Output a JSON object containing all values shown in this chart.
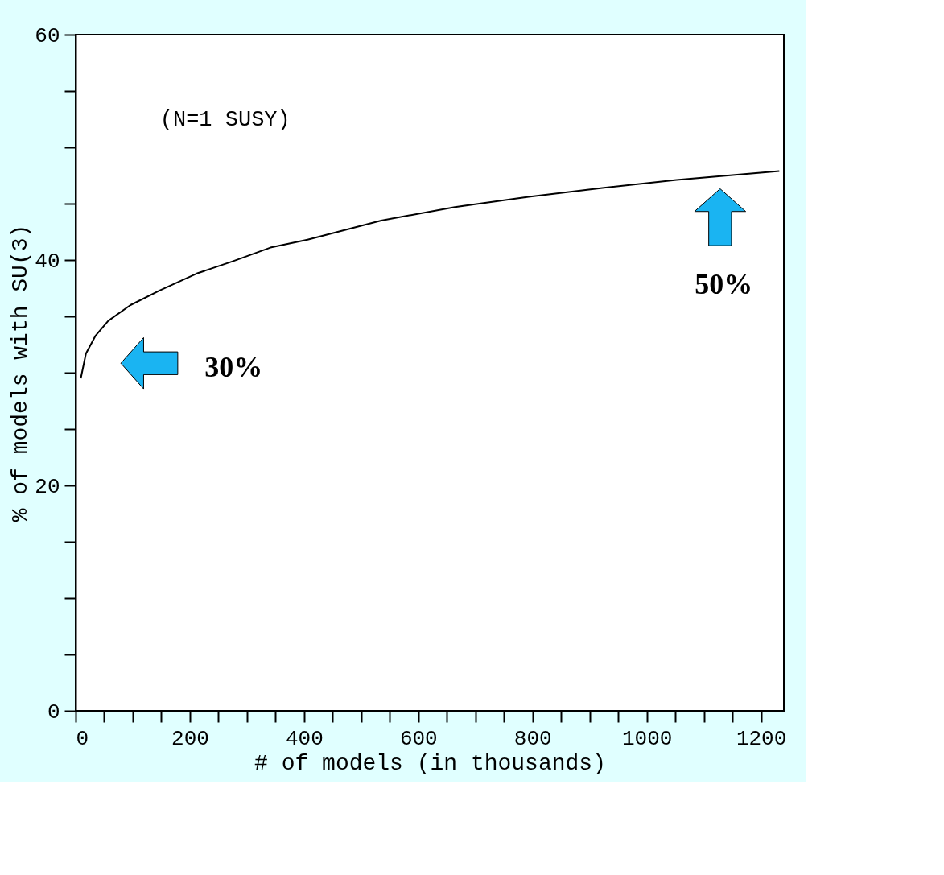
{
  "chart_data": {
    "type": "line",
    "xlabel": "# of models (in thousands)",
    "ylabel": "% of models with SU(3)",
    "x": [
      9,
      18,
      35,
      57,
      96,
      147,
      212,
      276,
      341,
      406,
      535,
      664,
      793,
      922,
      1052,
      1232
    ],
    "series": [
      {
        "color": "#000000",
        "values": [
          29.5,
          31.7,
          33.3,
          34.6,
          36.0,
          37.3,
          38.8,
          39.9,
          41.1,
          41.8,
          43.5,
          44.7,
          45.6,
          46.4,
          47.1,
          47.9
        ]
      }
    ],
    "xlim": [
      0,
      1240
    ],
    "ylim": [
      0,
      60
    ],
    "xticks": [
      0,
      {
        "value": 50,
        "label": null
      },
      {
        "value": 100,
        "label": null
      },
      {
        "value": 150,
        "label": null
      },
      200,
      {
        "value": 250,
        "label": null
      },
      {
        "value": 300,
        "label": null
      },
      {
        "value": 350,
        "label": null
      },
      400,
      {
        "value": 450,
        "label": null
      },
      {
        "value": 500,
        "label": null
      },
      {
        "value": 550,
        "label": null
      },
      600,
      {
        "value": 650,
        "label": null
      },
      {
        "value": 700,
        "label": null
      },
      {
        "value": 750,
        "label": null
      },
      800,
      {
        "value": 850,
        "label": null
      },
      {
        "value": 900,
        "label": null
      },
      {
        "value": 950,
        "label": null
      },
      1000,
      {
        "value": 1050,
        "label": null
      },
      {
        "value": 1100,
        "label": null
      },
      {
        "value": 1150,
        "label": null
      },
      1200
    ],
    "yticks": [
      0,
      {
        "value": 5,
        "label": null
      },
      {
        "value": 10,
        "label": null
      },
      {
        "value": 15,
        "label": null
      },
      20,
      {
        "value": 25,
        "label": null
      },
      {
        "value": 30,
        "label": null
      },
      {
        "value": 35,
        "label": null
      },
      40,
      {
        "value": 45,
        "label": null
      },
      {
        "value": 50,
        "label": null
      },
      {
        "value": 55,
        "label": null
      },
      60
    ],
    "grid": false,
    "marker": "none",
    "line_style": "solid",
    "annotations": [
      "(N=1  SUSY)",
      "30%",
      "50%"
    ]
  }
}
